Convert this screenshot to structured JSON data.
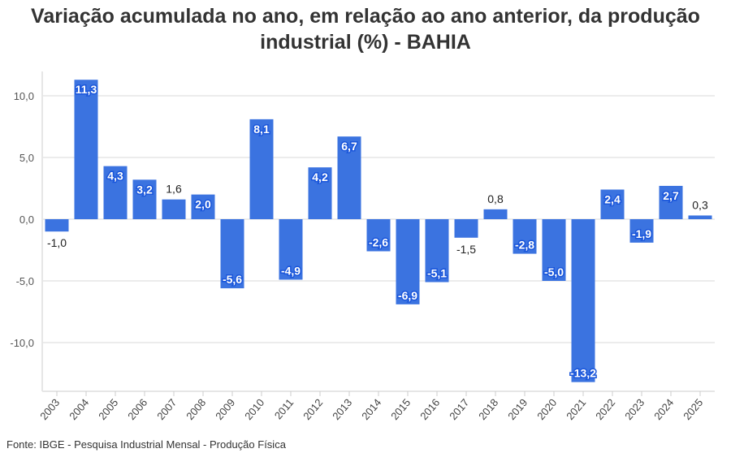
{
  "chart_data": {
    "type": "bar",
    "title": "Variação acumulada no ano, em relação ao ano anterior, da produção industrial (%) - BAHIA",
    "categories": [
      "2003",
      "2004",
      "2005",
      "2006",
      "2007",
      "2008",
      "2009",
      "2010",
      "2011",
      "2012",
      "2013",
      "2014",
      "2015",
      "2016",
      "2017",
      "2018",
      "2019",
      "2020",
      "2021",
      "2022",
      "2023",
      "2024",
      "2025"
    ],
    "values": [
      -1.0,
      11.3,
      4.3,
      3.2,
      1.6,
      2.0,
      -5.6,
      8.1,
      -4.9,
      4.2,
      6.7,
      -2.6,
      -6.9,
      -5.1,
      -1.5,
      0.8,
      -2.8,
      -5.0,
      -13.2,
      2.4,
      -1.9,
      2.7,
      0.3
    ],
    "data_labels": [
      "-1,0",
      "11,3",
      "4,3",
      "3,2",
      "1,6",
      "2,0",
      "-5,6",
      "8,1",
      "-4,9",
      "4,2",
      "6,7",
      "-2,6",
      "-6,9",
      "-5,1",
      "-1,5",
      "0,8",
      "-2,8",
      "-5,0",
      "-13,2",
      "2,4",
      "-1,9",
      "2,7",
      "0,3"
    ],
    "yticks": [
      -10,
      -5,
      0,
      5,
      10
    ],
    "ytick_labels": [
      "-10,0",
      "-5,0",
      "0,0",
      "5,0",
      "10,0"
    ],
    "ylim": [
      -13.9,
      12
    ],
    "xlabel": "",
    "ylabel": "",
    "grid": true,
    "bar_color": "#3b73e0",
    "source": "Fonte: IBGE - Pesquisa Industrial Mensal - Produção Física"
  }
}
